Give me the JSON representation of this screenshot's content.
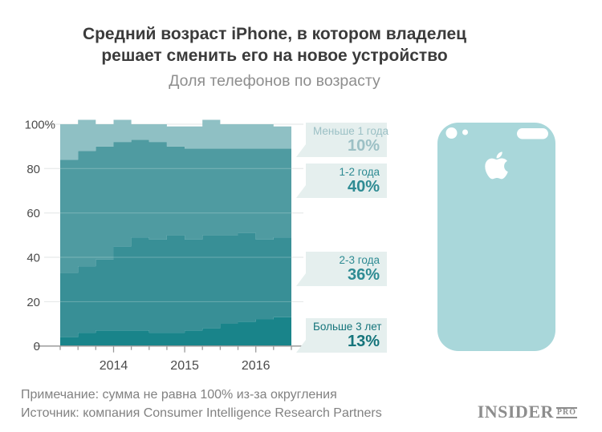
{
  "header": {
    "title_line1": "Средний возраст iPhone, в котором владелец",
    "title_line2": "решает сменить его на новое устройство",
    "subtitle": "Доля телефонов по возрасту"
  },
  "chart_data": {
    "type": "area",
    "stacked": true,
    "step": true,
    "grid": true,
    "ylim": [
      0,
      100
    ],
    "x": [
      "2013 Q2",
      "2013 Q3",
      "2013 Q4",
      "2014 Q1",
      "2014 Q2",
      "2014 Q3",
      "2014 Q4",
      "2015 Q1",
      "2015 Q2",
      "2015 Q3",
      "2015 Q4",
      "2016 Q1",
      "2016 Q2"
    ],
    "series": [
      {
        "name": "Больше 3 лет",
        "color": "#19848a",
        "values": [
          4,
          6,
          7,
          7,
          7,
          6,
          6,
          7,
          8,
          10,
          11,
          12,
          13
        ]
      },
      {
        "name": "2-3 года",
        "color": "#388f96",
        "values": [
          29,
          30,
          32,
          38,
          42,
          42,
          44,
          41,
          42,
          40,
          40,
          36,
          36
        ]
      },
      {
        "name": "1-2 года",
        "color": "#4f9ba1",
        "values": [
          51,
          52,
          51,
          47,
          44,
          44,
          40,
          41,
          39,
          39,
          38,
          41,
          40
        ]
      },
      {
        "name": "Меньше 1 года",
        "color": "#8fc0c4",
        "values": [
          16,
          14,
          10,
          10,
          7,
          8,
          9,
          10,
          13,
          11,
          11,
          11,
          10
        ]
      }
    ],
    "y_ticks": [
      {
        "v": 0,
        "label": "0"
      },
      {
        "v": 20,
        "label": "20"
      },
      {
        "v": 40,
        "label": "40"
      },
      {
        "v": 60,
        "label": "60"
      },
      {
        "v": 80,
        "label": "80"
      },
      {
        "v": 100,
        "label": "100%"
      }
    ],
    "x_tick_labels": [
      {
        "label": "2014",
        "index": 3
      },
      {
        "label": "2015",
        "index": 7
      },
      {
        "label": "2016",
        "index": 11
      }
    ],
    "callouts": [
      {
        "label": "Меньше 1 года",
        "value": "10%"
      },
      {
        "label": "1-2 года",
        "value": "40%"
      },
      {
        "label": "2-3 года",
        "value": "36%"
      },
      {
        "label": "Больше 3 лет",
        "value": "13%"
      }
    ]
  },
  "footer": {
    "note": "Примечание: сумма не равна 100% из-за округления",
    "source": "Источник: компания Consumer Intelligence Research Partners",
    "logo_main": "INSIDER",
    "logo_sub": "PRO"
  },
  "colors": {
    "callout_bg": "#e5efee",
    "callout_light": "#9cc0c5",
    "callout_teal": "#2e8b93",
    "callout_dark": "#15747b",
    "iphone": "#a9d7da"
  }
}
